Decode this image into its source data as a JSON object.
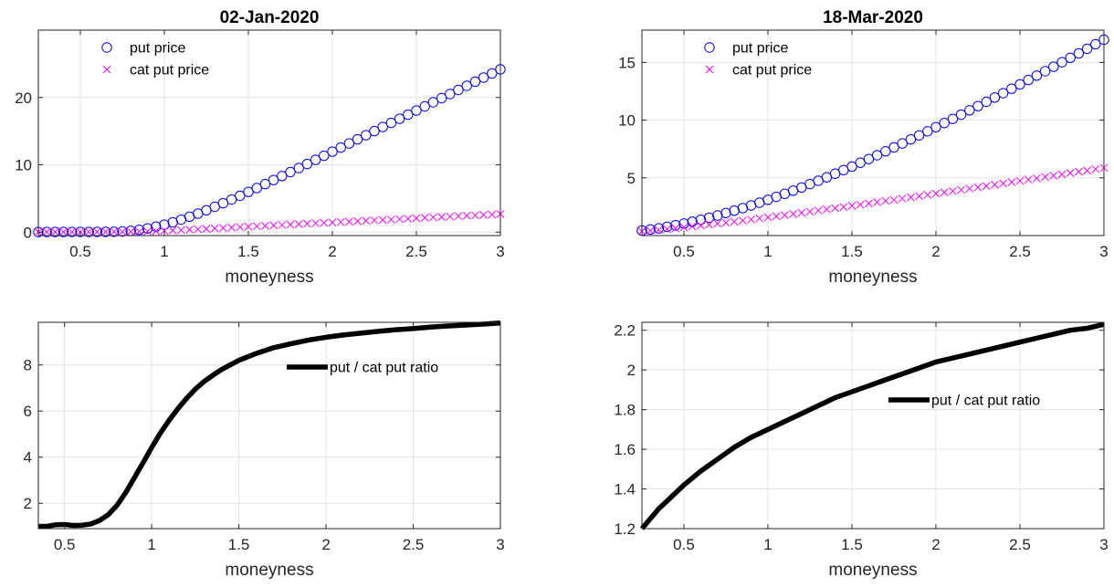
{
  "figure": {
    "background": "#ffffff",
    "grid": true
  },
  "chart_data": [
    {
      "id": "prices-jan",
      "type": "scatter",
      "title": "02-Jan-2020",
      "xlabel": "moneyness",
      "ylabel": "",
      "xlim": [
        0.25,
        3.0
      ],
      "ylim": [
        -0.5,
        30.0
      ],
      "xticks": [
        0.5,
        1,
        1.5,
        2,
        2.5,
        3
      ],
      "xtick_labels": [
        "0.5",
        "1",
        "1.5",
        "2",
        "2.5",
        "3"
      ],
      "yticks": [
        0,
        10,
        20
      ],
      "ytick_labels": [
        "0",
        "10",
        "20"
      ],
      "legend": {
        "placement": "top-left"
      },
      "series": [
        {
          "name": "put price",
          "marker": "circle",
          "color": "#0000ff",
          "x": [
            0.25,
            0.3,
            0.35,
            0.4,
            0.45,
            0.5,
            0.55,
            0.6,
            0.65,
            0.7,
            0.75,
            0.8,
            0.85,
            0.9,
            0.95,
            1.0,
            1.05,
            1.1,
            1.15,
            1.2,
            1.25,
            1.3,
            1.35,
            1.4,
            1.45,
            1.5,
            1.55,
            1.6,
            1.65,
            1.7,
            1.75,
            1.8,
            1.85,
            1.9,
            1.95,
            2.0,
            2.05,
            2.1,
            2.15,
            2.2,
            2.25,
            2.3,
            2.35,
            2.4,
            2.45,
            2.5,
            2.55,
            2.6,
            2.65,
            2.7,
            2.75,
            2.8,
            2.85,
            2.9,
            2.95,
            3.0
          ],
          "y": [
            0.03,
            0.03,
            0.03,
            0.03,
            0.04,
            0.04,
            0.04,
            0.05,
            0.05,
            0.07,
            0.11,
            0.2,
            0.35,
            0.56,
            0.82,
            1.12,
            1.47,
            1.87,
            2.3,
            2.76,
            3.25,
            3.77,
            4.3,
            4.85,
            5.41,
            5.98,
            6.56,
            7.15,
            7.74,
            8.33,
            8.93,
            9.53,
            10.13,
            10.74,
            11.35,
            11.96,
            12.57,
            13.18,
            13.79,
            14.4,
            15.01,
            15.62,
            16.23,
            16.84,
            17.45,
            18.06,
            18.68,
            19.29,
            19.9,
            20.51,
            21.12,
            21.73,
            22.35,
            22.96,
            23.57,
            24.18
          ]
        },
        {
          "name": "cat put price",
          "marker": "x",
          "color": "#ff00ff",
          "x": [
            0.25,
            0.3,
            0.35,
            0.4,
            0.45,
            0.5,
            0.55,
            0.6,
            0.65,
            0.7,
            0.75,
            0.8,
            0.85,
            0.9,
            0.95,
            1.0,
            1.05,
            1.1,
            1.15,
            1.2,
            1.25,
            1.3,
            1.35,
            1.4,
            1.45,
            1.5,
            1.55,
            1.6,
            1.65,
            1.7,
            1.75,
            1.8,
            1.85,
            1.9,
            1.95,
            2.0,
            2.05,
            2.1,
            2.15,
            2.2,
            2.25,
            2.3,
            2.35,
            2.4,
            2.45,
            2.5,
            2.55,
            2.6,
            2.65,
            2.7,
            2.75,
            2.8,
            2.85,
            2.9,
            2.95,
            3.0
          ],
          "y": [
            0.03,
            0.03,
            0.03,
            0.03,
            0.04,
            0.04,
            0.04,
            0.05,
            0.05,
            0.06,
            0.07,
            0.08,
            0.1,
            0.12,
            0.16,
            0.21,
            0.26,
            0.32,
            0.38,
            0.44,
            0.5,
            0.57,
            0.63,
            0.69,
            0.76,
            0.82,
            0.88,
            0.94,
            1.01,
            1.07,
            1.13,
            1.19,
            1.26,
            1.32,
            1.38,
            1.45,
            1.51,
            1.57,
            1.63,
            1.7,
            1.76,
            1.82,
            1.88,
            1.95,
            2.01,
            2.07,
            2.14,
            2.2,
            2.26,
            2.32,
            2.39,
            2.45,
            2.51,
            2.57,
            2.64,
            2.7
          ]
        }
      ]
    },
    {
      "id": "prices-mar",
      "type": "scatter",
      "title": "18-Mar-2020",
      "xlabel": "moneyness",
      "ylabel": "",
      "xlim": [
        0.25,
        3.0
      ],
      "ylim": [
        0.0,
        17.8
      ],
      "xticks": [
        0.5,
        1,
        1.5,
        2,
        2.5,
        3
      ],
      "xtick_labels": [
        "0.5",
        "1",
        "1.5",
        "2",
        "2.5",
        "3"
      ],
      "yticks": [
        5,
        10,
        15
      ],
      "ytick_labels": [
        "5",
        "10",
        "15"
      ],
      "legend": {
        "placement": "top-left"
      },
      "series": [
        {
          "name": "put price",
          "marker": "circle",
          "color": "#0000ff",
          "x": [
            0.25,
            0.3,
            0.35,
            0.4,
            0.45,
            0.5,
            0.55,
            0.6,
            0.65,
            0.7,
            0.75,
            0.8,
            0.85,
            0.9,
            0.95,
            1.0,
            1.05,
            1.1,
            1.15,
            1.2,
            1.25,
            1.3,
            1.35,
            1.4,
            1.45,
            1.5,
            1.55,
            1.6,
            1.65,
            1.7,
            1.75,
            1.8,
            1.85,
            1.9,
            1.95,
            2.0,
            2.05,
            2.1,
            2.15,
            2.2,
            2.25,
            2.3,
            2.35,
            2.4,
            2.45,
            2.5,
            2.55,
            2.6,
            2.65,
            2.7,
            2.75,
            2.8,
            2.85,
            2.9,
            2.95,
            3.0
          ],
          "y": [
            0.44,
            0.53,
            0.63,
            0.76,
            0.89,
            1.04,
            1.2,
            1.37,
            1.55,
            1.74,
            1.95,
            2.16,
            2.38,
            2.61,
            2.85,
            3.1,
            3.36,
            3.62,
            3.89,
            4.17,
            4.46,
            4.75,
            5.05,
            5.36,
            5.67,
            5.98,
            6.31,
            6.63,
            6.96,
            7.3,
            7.64,
            7.98,
            8.33,
            8.68,
            9.03,
            9.39,
            9.75,
            10.11,
            10.48,
            10.85,
            11.22,
            11.59,
            11.96,
            12.34,
            12.72,
            13.1,
            13.48,
            13.86,
            14.24,
            14.63,
            15.02,
            15.4,
            15.79,
            16.18,
            16.58,
            16.97
          ]
        },
        {
          "name": "cat put price",
          "marker": "x",
          "color": "#ff00ff",
          "x": [
            0.25,
            0.3,
            0.35,
            0.4,
            0.45,
            0.5,
            0.55,
            0.6,
            0.65,
            0.7,
            0.75,
            0.8,
            0.85,
            0.9,
            0.95,
            1.0,
            1.05,
            1.1,
            1.15,
            1.2,
            1.25,
            1.3,
            1.35,
            1.4,
            1.45,
            1.5,
            1.55,
            1.6,
            1.65,
            1.7,
            1.75,
            1.8,
            1.85,
            1.9,
            1.95,
            2.0,
            2.05,
            2.1,
            2.15,
            2.2,
            2.25,
            2.3,
            2.35,
            2.4,
            2.45,
            2.5,
            2.55,
            2.6,
            2.65,
            2.7,
            2.75,
            2.8,
            2.85,
            2.9,
            2.95,
            3.0
          ],
          "y": [
            0.37,
            0.43,
            0.49,
            0.56,
            0.63,
            0.71,
            0.79,
            0.87,
            0.95,
            1.04,
            1.12,
            1.21,
            1.3,
            1.39,
            1.49,
            1.58,
            1.68,
            1.77,
            1.87,
            1.97,
            2.07,
            2.17,
            2.27,
            2.37,
            2.47,
            2.58,
            2.68,
            2.78,
            2.89,
            3.0,
            3.1,
            3.21,
            3.31,
            3.42,
            3.53,
            3.64,
            3.75,
            3.85,
            3.96,
            4.07,
            4.18,
            4.29,
            4.41,
            4.52,
            4.63,
            4.74,
            4.85,
            4.96,
            5.08,
            5.19,
            5.3,
            5.42,
            5.53,
            5.64,
            5.76,
            5.87
          ]
        }
      ]
    },
    {
      "id": "ratio-jan",
      "type": "line",
      "title": "",
      "xlabel": "moneyness",
      "ylabel": "",
      "xlim": [
        0.35,
        3.0
      ],
      "ylim": [
        0.9,
        9.85
      ],
      "xticks": [
        0.5,
        1,
        1.5,
        2,
        2.5,
        3
      ],
      "xtick_labels": [
        "0.5",
        "1",
        "1.5",
        "2",
        "2.5",
        "3"
      ],
      "yticks": [
        2,
        4,
        6,
        8
      ],
      "ytick_labels": [
        "2",
        "4",
        "6",
        "8"
      ],
      "legend": {
        "placement": "top-right"
      },
      "series": [
        {
          "name": "put / cat put ratio",
          "color": "#000000",
          "x": [
            0.35,
            0.4,
            0.45,
            0.5,
            0.55,
            0.6,
            0.65,
            0.7,
            0.75,
            0.8,
            0.85,
            0.9,
            0.95,
            1.0,
            1.05,
            1.1,
            1.15,
            1.2,
            1.25,
            1.3,
            1.35,
            1.4,
            1.45,
            1.5,
            1.6,
            1.7,
            1.8,
            1.9,
            2.0,
            2.1,
            2.2,
            2.3,
            2.4,
            2.5,
            2.6,
            2.7,
            2.8,
            2.9,
            3.0
          ],
          "y": [
            1.0,
            1.0,
            1.07,
            1.08,
            1.04,
            1.05,
            1.1,
            1.25,
            1.5,
            1.9,
            2.45,
            3.1,
            3.75,
            4.42,
            5.05,
            5.6,
            6.1,
            6.55,
            6.95,
            7.28,
            7.55,
            7.8,
            8.0,
            8.2,
            8.5,
            8.75,
            8.92,
            9.08,
            9.2,
            9.3,
            9.38,
            9.46,
            9.53,
            9.58,
            9.64,
            9.69,
            9.73,
            9.77,
            9.82
          ]
        }
      ]
    },
    {
      "id": "ratio-mar",
      "type": "line",
      "title": "",
      "xlabel": "moneyness",
      "ylabel": "",
      "xlim": [
        0.25,
        3.0
      ],
      "ylim": [
        1.2,
        2.24
      ],
      "xticks": [
        0.5,
        1,
        1.5,
        2,
        2.5,
        3
      ],
      "xtick_labels": [
        "0.5",
        "1",
        "1.5",
        "2",
        "2.5",
        "3"
      ],
      "yticks": [
        1.2,
        1.4,
        1.6,
        1.8,
        2.0,
        2.2
      ],
      "ytick_labels": [
        "1.2",
        "1.4",
        "1.6",
        "1.8",
        "2",
        "2.2"
      ],
      "legend": {
        "placement": "right"
      },
      "series": [
        {
          "name": "put / cat put ratio",
          "color": "#000000",
          "x": [
            0.25,
            0.3,
            0.35,
            0.4,
            0.45,
            0.5,
            0.6,
            0.7,
            0.8,
            0.9,
            1.0,
            1.1,
            1.2,
            1.3,
            1.4,
            1.5,
            1.6,
            1.7,
            1.8,
            1.9,
            2.0,
            2.1,
            2.2,
            2.3,
            2.4,
            2.5,
            2.6,
            2.7,
            2.8,
            2.9,
            3.0
          ],
          "y": [
            1.2,
            1.25,
            1.3,
            1.34,
            1.38,
            1.42,
            1.49,
            1.55,
            1.61,
            1.66,
            1.7,
            1.74,
            1.78,
            1.82,
            1.86,
            1.89,
            1.92,
            1.95,
            1.98,
            2.01,
            2.04,
            2.06,
            2.08,
            2.1,
            2.12,
            2.14,
            2.16,
            2.18,
            2.2,
            2.21,
            2.23
          ]
        }
      ]
    }
  ]
}
